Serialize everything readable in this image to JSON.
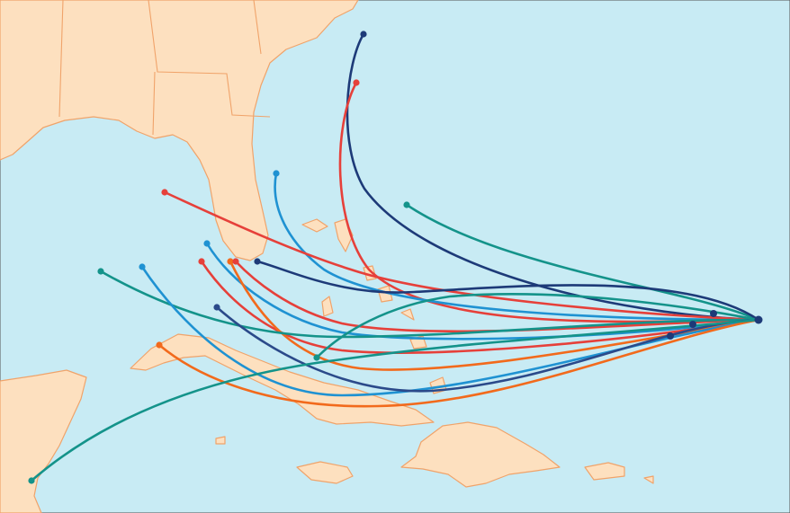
{
  "map": {
    "colors": {
      "ocean": "#c8ebf4",
      "land": "#fde0bf",
      "land_outline": "#f0a36a",
      "navy": "#1d3a78",
      "dark_blue": "#2b4a8a",
      "red": "#e6403a",
      "teal": "#14938a",
      "light_blue": "#1f92d2",
      "orange": "#f26a1c"
    },
    "tracks": [
      {
        "color": "navy"
      },
      {
        "color": "red"
      },
      {
        "color": "teal"
      },
      {
        "color": "light_blue"
      },
      {
        "color": "red"
      },
      {
        "color": "light_blue"
      },
      {
        "color": "red"
      },
      {
        "color": "orange"
      },
      {
        "color": "red"
      },
      {
        "color": "navy"
      },
      {
        "color": "teal"
      },
      {
        "color": "light_blue"
      },
      {
        "color": "dark_blue"
      },
      {
        "color": "teal"
      },
      {
        "color": "orange"
      },
      {
        "color": "teal"
      }
    ]
  }
}
